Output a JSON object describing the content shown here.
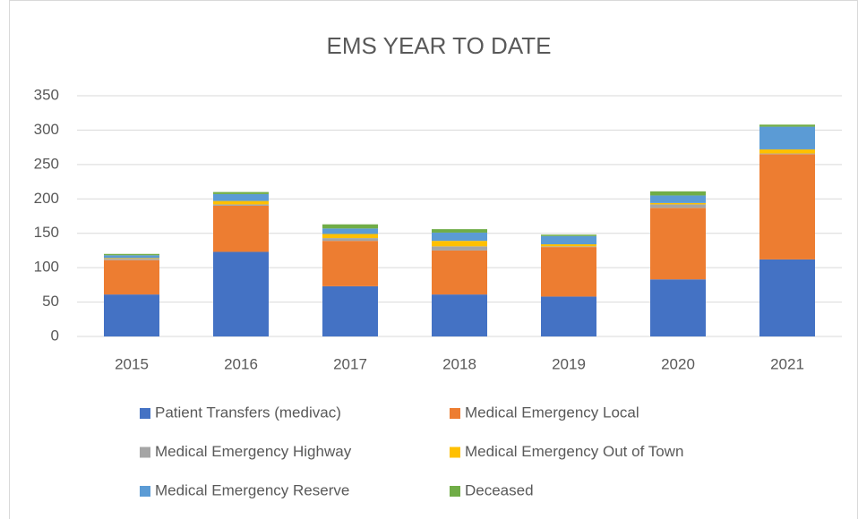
{
  "chart_data": {
    "type": "stacked_bar",
    "title": "EMS YEAR TO DATE",
    "categories": [
      "2015",
      "2016",
      "2017",
      "2018",
      "2019",
      "2020",
      "2021"
    ],
    "series": [
      {
        "name": "Patient Transfers (medivac)",
        "color": "#4472c4",
        "values": [
          61,
          123,
          73,
          61,
          58,
          83,
          112
        ]
      },
      {
        "name": "Medical Emergency Local",
        "color": "#ed7d31",
        "values": [
          50,
          67,
          66,
          64,
          72,
          104,
          153
        ]
      },
      {
        "name": "Medical Emergency Highway",
        "color": "#a5a5a5",
        "values": [
          2,
          2,
          4,
          6,
          1,
          5,
          1
        ]
      },
      {
        "name": "Medical Emergency Out of Town",
        "color": "#ffc000",
        "values": [
          1,
          5,
          6,
          8,
          3,
          2,
          6
        ]
      },
      {
        "name": "Medical Emergency Reserve",
        "color": "#5b9bd5",
        "values": [
          4,
          10,
          8,
          12,
          12,
          11,
          33
        ]
      },
      {
        "name": "Deceased",
        "color": "#70ad47",
        "values": [
          2,
          3,
          6,
          5,
          2,
          6,
          3
        ]
      }
    ],
    "ylim": [
      0,
      350
    ],
    "yticks": [
      0,
      50,
      100,
      150,
      200,
      250,
      300,
      350
    ],
    "grid": true,
    "legend": "bottom"
  }
}
